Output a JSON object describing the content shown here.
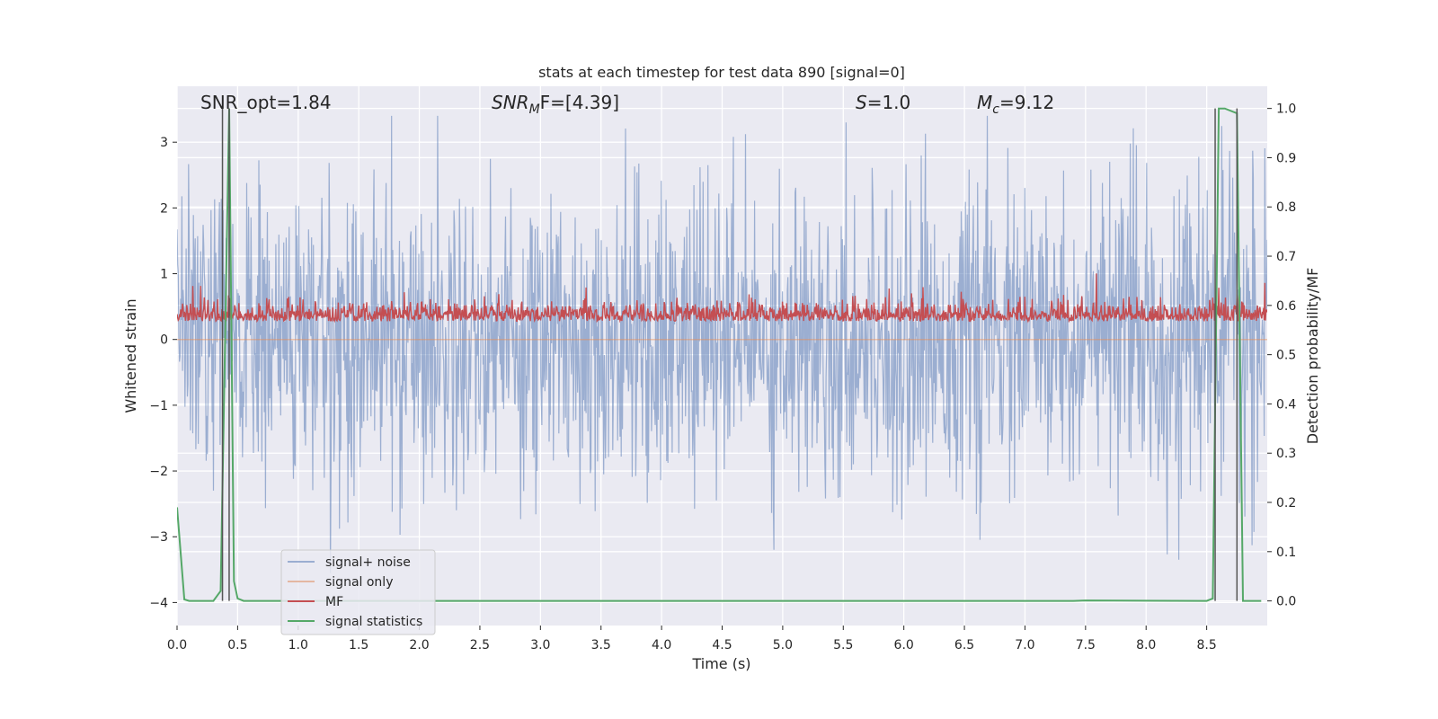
{
  "chart_data": {
    "type": "line",
    "title": "stats at each timestep for test data 890 [signal=0]",
    "xlabel": "Time (s)",
    "ylabel_left": "Whitened strain",
    "ylabel_right": "Detection probability/MF",
    "xlim": [
      0.0,
      9.0
    ],
    "ylim_left": [
      -4.35,
      3.85
    ],
    "ylim_right": [
      -0.05,
      1.045
    ],
    "x_ticks": [
      0.0,
      0.5,
      1.0,
      1.5,
      2.0,
      2.5,
      3.0,
      3.5,
      4.0,
      4.5,
      5.0,
      5.5,
      6.0,
      6.5,
      7.0,
      7.5,
      8.0,
      8.5
    ],
    "x_tick_labels": [
      "0.0",
      "0.5",
      "1.0",
      "1.5",
      "2.0",
      "2.5",
      "3.0",
      "3.5",
      "4.0",
      "4.5",
      "5.0",
      "5.5",
      "6.0",
      "6.5",
      "7.0",
      "7.5",
      "8.0",
      "8.5"
    ],
    "y_left_ticks": [
      -4,
      -3,
      -2,
      -1,
      0,
      1,
      2,
      3
    ],
    "y_left_tick_labels": [
      "−4",
      "−3",
      "−2",
      "−1",
      "0",
      "1",
      "2",
      "3"
    ],
    "y_right_ticks": [
      0.0,
      0.1,
      0.2,
      0.3,
      0.4,
      0.5,
      0.6,
      0.7,
      0.8,
      0.9,
      1.0
    ],
    "y_right_tick_labels": [
      "0.0",
      "0.1",
      "0.2",
      "0.3",
      "0.4",
      "0.5",
      "0.6",
      "0.7",
      "0.8",
      "0.9",
      "1.0"
    ],
    "grid": true,
    "legend_position": "lower-left",
    "annotations": {
      "snr_opt": "SNR_opt=1.84",
      "snr_mf_main": "SNR",
      "snr_mf_sub": "M",
      "snr_mf_rest": "F=[4.39]",
      "s_main": "S",
      "s_rest": "=1.0",
      "mc_main": "M",
      "mc_sub": "c",
      "mc_rest": "=9.12"
    },
    "vertical_lines": [
      0.375,
      0.43,
      8.57,
      8.75
    ],
    "series": [
      {
        "name": "signal+ noise",
        "color": "#4c72b0",
        "axis": "left",
        "style": "noise",
        "description_stats": {
          "mean": 0.0,
          "std": 1.0,
          "min": -3.75,
          "max": 3.4
        },
        "samples": 1800
      },
      {
        "name": "signal only",
        "color": "#dd8452",
        "axis": "left",
        "x": [
          0.0,
          9.0
        ],
        "y": [
          0.0,
          0.0
        ]
      },
      {
        "name": "MF",
        "color": "#c44e52",
        "axis": "right",
        "style": "noise",
        "description_stats": {
          "mean": 0.58,
          "min": 0.545,
          "max": 0.665
        },
        "samples": 1800
      },
      {
        "name": "signal statistics",
        "color": "#55a868",
        "axis": "right",
        "x": [
          0.0,
          0.06,
          0.1,
          0.3,
          0.36,
          0.43,
          0.47,
          0.5,
          0.55,
          7.4,
          7.5,
          8.5,
          8.55,
          8.6,
          8.65,
          8.75,
          8.8,
          8.95
        ],
        "y": [
          0.19,
          0.003,
          0.0,
          0.0,
          0.02,
          1.0,
          0.04,
          0.005,
          0.0,
          0.0,
          0.001,
          0.0,
          0.005,
          1.0,
          1.0,
          0.99,
          0.0,
          0.0
        ]
      }
    ]
  }
}
